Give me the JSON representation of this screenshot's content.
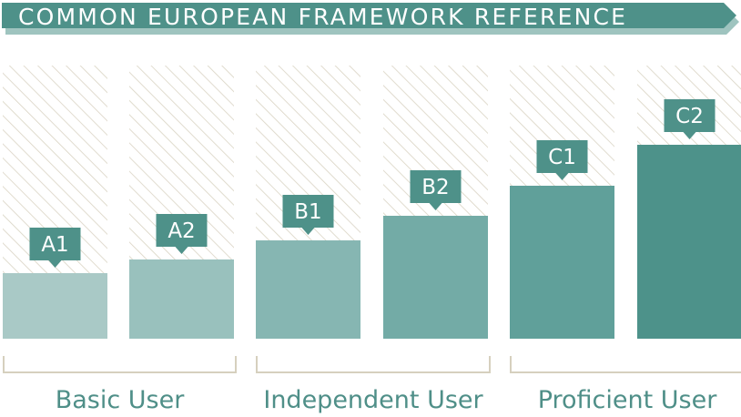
{
  "title": "COMMON EUROPEAN FRAMEWORK REFERENCE",
  "colors": {
    "banner": "#4e9189",
    "banner_shadow": "#9fc4bf",
    "hatch": "#d9d3c3",
    "bracket": "#d6d0be",
    "label_bg": "#4e9189",
    "group_text": "#4f8f88",
    "levels": [
      "#a9c9c6",
      "#99c1bd",
      "#86b6b2",
      "#73aba6",
      "#60a09a",
      "#4d928a"
    ]
  },
  "chart_data": {
    "type": "bar",
    "title": "COMMON EUROPEAN FRAMEWORK REFERENCE",
    "categories": [
      "A1",
      "A2",
      "B1",
      "B2",
      "C1",
      "C2"
    ],
    "values": [
      24,
      29,
      36,
      45,
      56,
      71
    ],
    "ylim": [
      0,
      100
    ],
    "groups": [
      {
        "name": "Basic User",
        "categories": [
          "A1",
          "A2"
        ]
      },
      {
        "name": "Independent User",
        "categories": [
          "B1",
          "B2"
        ]
      },
      {
        "name": "Proficient User",
        "categories": [
          "C1",
          "C2"
        ]
      }
    ],
    "grid": false,
    "legend": "none"
  }
}
